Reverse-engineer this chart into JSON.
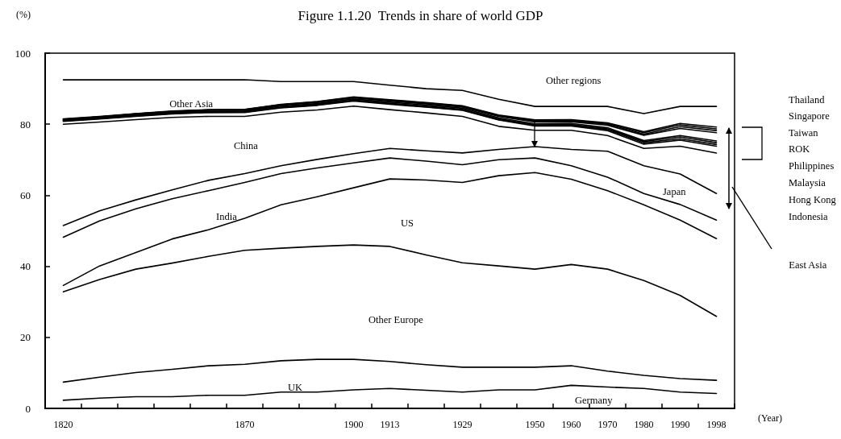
{
  "chart_data": {
    "type": "line",
    "title": "Figure 1.1.20  Trends in share of world GDP",
    "ylabel": "(%)",
    "xlabel": "(Year)",
    "categories": [
      "1820",
      null,
      null,
      null,
      null,
      "1870",
      null,
      null,
      "1900",
      "1913",
      null,
      "1929",
      null,
      "1950",
      "1960",
      "1970",
      "1980",
      "1990",
      "1998"
    ],
    "ylim": [
      0,
      100
    ],
    "yticks": [
      0,
      20,
      40,
      60,
      80,
      100
    ],
    "grid": false,
    "marker": "none",
    "line_style": "solid",
    "series": [
      {
        "color": "#000000",
        "values": [
          2.3,
          2.9,
          3.3,
          3.3,
          3.7,
          3.7,
          4.6,
          4.6,
          5.2,
          5.6,
          5.1,
          4.6,
          5.2,
          5.2,
          6.5,
          6.0,
          5.6,
          4.6,
          4.2
        ]
      },
      {
        "color": "#000000",
        "values": [
          7.4,
          8.8,
          10.1,
          11.0,
          12.0,
          12.4,
          13.4,
          13.8,
          13.8,
          13.2,
          12.3,
          11.6,
          11.6,
          11.6,
          12.0,
          10.5,
          9.3,
          8.4,
          7.9
        ]
      },
      {
        "color": "#000000",
        "values": [
          32.8,
          36.3,
          39.2,
          40.9,
          42.8,
          44.5,
          45.1,
          45.6,
          46.0,
          45.6,
          43.2,
          41.0,
          40.1,
          39.2,
          40.5,
          39.2,
          36.0,
          31.8,
          25.9
        ]
      },
      {
        "color": "#000000",
        "values": [
          34.6,
          40.1,
          43.9,
          47.7,
          50.3,
          53.5,
          57.3,
          59.6,
          62.1,
          64.6,
          64.3,
          63.6,
          65.5,
          66.4,
          64.5,
          61.3,
          57.3,
          53.0,
          47.8
        ]
      },
      {
        "color": "#000000",
        "values": [
          48.2,
          52.8,
          56.2,
          59.0,
          61.3,
          63.6,
          66.1,
          67.7,
          69.1,
          70.5,
          69.6,
          68.6,
          70.0,
          70.5,
          68.3,
          65.1,
          60.5,
          57.4,
          53.0
        ]
      },
      {
        "color": "#000000",
        "values": [
          51.5,
          55.6,
          58.7,
          61.5,
          64.2,
          66.1,
          68.3,
          70.1,
          71.7,
          73.2,
          72.5,
          71.9,
          72.9,
          73.7,
          72.9,
          72.4,
          68.3,
          66.0,
          60.5
        ]
      },
      {
        "color": "#000000",
        "values": [
          80.0,
          80.6,
          81.3,
          81.9,
          82.2,
          82.2,
          83.4,
          84.0,
          85.1,
          84.1,
          83.2,
          82.2,
          79.4,
          78.3,
          78.3,
          76.8,
          73.2,
          73.8,
          71.9
        ]
      },
      {
        "color": "#000000",
        "values": [
          80.8,
          81.5,
          82.2,
          82.9,
          83.3,
          83.3,
          84.6,
          85.3,
          86.5,
          85.6,
          84.8,
          83.9,
          81.2,
          79.5,
          79.5,
          78.2,
          74.4,
          75.5,
          73.8
        ]
      },
      {
        "color": "#000000",
        "values": [
          80.9,
          81.6,
          82.3,
          83.0,
          83.3,
          83.4,
          84.7,
          85.4,
          86.7,
          85.8,
          84.9,
          84.0,
          81.3,
          79.7,
          79.7,
          78.5,
          74.8,
          75.9,
          74.3
        ]
      },
      {
        "color": "#000000",
        "values": [
          81.0,
          81.6,
          82.4,
          83.1,
          83.4,
          83.5,
          84.8,
          85.6,
          86.8,
          85.9,
          85.1,
          84.2,
          81.5,
          79.8,
          79.9,
          78.7,
          75.1,
          76.4,
          74.8
        ]
      },
      {
        "color": "#000000",
        "values": [
          81.1,
          81.8,
          82.6,
          83.3,
          83.6,
          83.7,
          85.1,
          85.8,
          87.1,
          86.2,
          85.4,
          84.5,
          81.8,
          80.1,
          80.2,
          79.0,
          75.4,
          76.8,
          75.3
        ]
      },
      {
        "color": "#000000",
        "values": [
          81.3,
          82.0,
          82.8,
          83.5,
          83.9,
          83.9,
          85.3,
          86.1,
          87.4,
          86.5,
          85.7,
          84.8,
          82.2,
          80.6,
          80.7,
          79.7,
          76.9,
          78.8,
          77.6
        ]
      },
      {
        "color": "#000000",
        "values": [
          81.4,
          82.1,
          82.9,
          83.6,
          84.0,
          84.1,
          85.5,
          86.2,
          87.5,
          86.7,
          85.9,
          85.0,
          82.4,
          80.9,
          80.9,
          80.0,
          77.2,
          79.3,
          78.2
        ]
      },
      {
        "color": "#000000",
        "values": [
          81.4,
          82.1,
          82.9,
          83.6,
          84.0,
          84.1,
          85.5,
          86.3,
          87.6,
          86.8,
          86.0,
          85.1,
          82.4,
          81.0,
          81.1,
          80.2,
          77.6,
          79.8,
          78.7
        ]
      },
      {
        "color": "#000000",
        "values": [
          81.5,
          82.2,
          83.0,
          83.7,
          84.1,
          84.2,
          85.6,
          86.4,
          87.7,
          86.9,
          86.1,
          85.2,
          82.6,
          81.2,
          81.3,
          80.4,
          77.9,
          80.2,
          79.2
        ]
      },
      {
        "color": "#000000",
        "values": [
          92.5,
          92.5,
          92.5,
          92.5,
          92.5,
          92.5,
          92.0,
          92.0,
          92.0,
          91.0,
          90.0,
          89.5,
          87.0,
          85.0,
          85.0,
          85.0,
          83.0,
          85.0,
          85.0
        ]
      }
    ],
    "annotations": [
      "Other regions",
      "Other Asia",
      "China",
      "India",
      "US",
      "Japan",
      "Other Europe",
      "UK",
      "Germany",
      "Thailand",
      "Singapore",
      "Taiwan",
      "ROK",
      "Philippines",
      "Malaysia",
      "Hong Kong",
      "Indonesia",
      "East Asia"
    ]
  }
}
